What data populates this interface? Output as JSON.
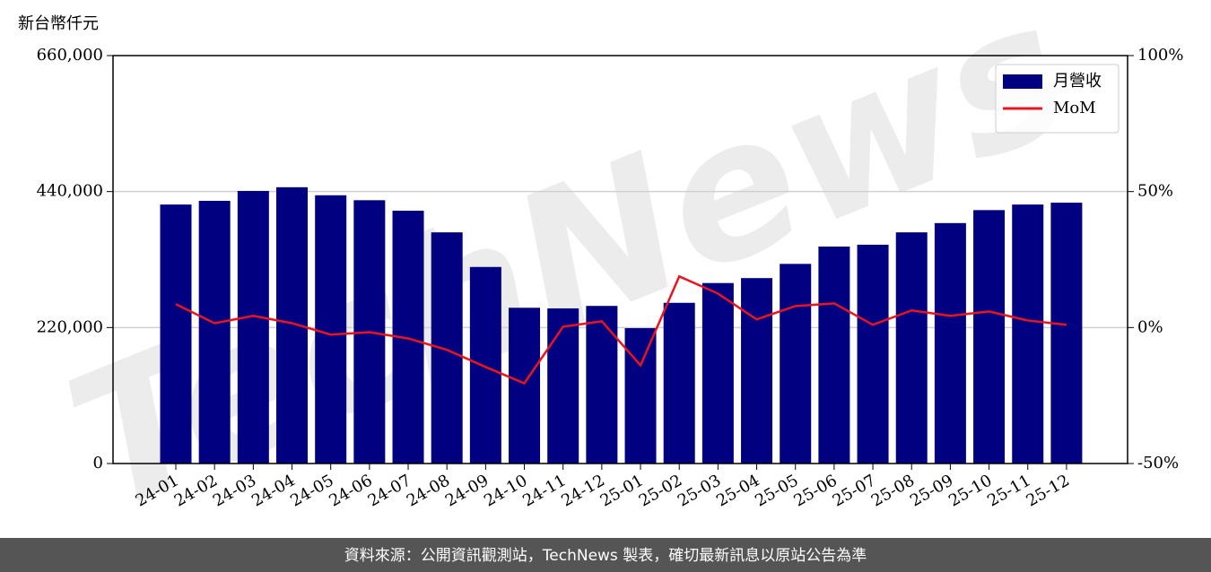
{
  "chart_data": {
    "type": "bar_line",
    "y_label": "新台幣仟元",
    "watermark": "TechNews",
    "footer": "資料來源：公開資訊觀測站，TechNews 製表，確切最新訊息以原站公告為準",
    "categories": [
      "24-01",
      "24-02",
      "24-03",
      "24-04",
      "24-05",
      "24-06",
      "24-07",
      "24-08",
      "24-09",
      "24-10",
      "24-11",
      "24-12",
      "25-01",
      "25-02",
      "25-03",
      "25-04",
      "25-05",
      "25-06",
      "25-07",
      "25-08",
      "25-09",
      "25-10",
      "25-11",
      "25-12"
    ],
    "series": [
      {
        "name": "月營收",
        "type": "bar",
        "color": "#000080",
        "values": [
          419000,
          425000,
          441000,
          447000,
          434000,
          426000,
          409000,
          374000,
          318000,
          252000,
          251000,
          255000,
          219000,
          260000,
          292000,
          300000,
          323000,
          351000,
          354000,
          374000,
          389000,
          410000,
          419000,
          422000
        ]
      },
      {
        "name": "MoM",
        "type": "line",
        "color": "#e8141e",
        "axis": "y2",
        "values": [
          8.6,
          1.6,
          4.3,
          1.6,
          -2.6,
          -1.7,
          -4.0,
          -8.2,
          -14.5,
          -20.5,
          0.3,
          2.3,
          -13.9,
          18.8,
          12.5,
          3.0,
          7.9,
          8.9,
          1.0,
          6.3,
          4.3,
          5.9,
          2.6,
          1.0
        ]
      }
    ],
    "ylim": [
      0,
      660000
    ],
    "yticks": [
      0,
      {
        "value": 220000,
        "label": "220,000"
      },
      {
        "value": 440000,
        "label": "440,000"
      },
      {
        "value": 660000,
        "label": "660,000"
      }
    ],
    "y2lim": [
      -50,
      100
    ],
    "y2ticks": [
      {
        "value": -50,
        "label": "-50%"
      },
      {
        "value": 0,
        "label": "0%"
      },
      {
        "value": 50,
        "label": "50%"
      },
      {
        "value": 100,
        "label": "100%"
      }
    ],
    "grid": true,
    "legend": "upper right"
  }
}
